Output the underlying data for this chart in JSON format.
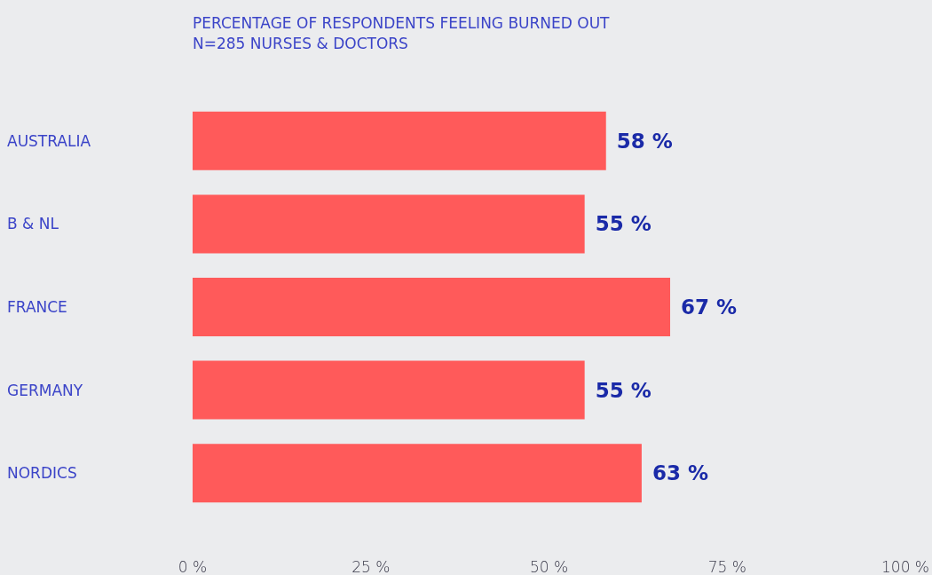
{
  "chart_data": {
    "type": "bar",
    "orientation": "horizontal",
    "title": "PERCENTAGE OF RESPONDENTS FEELING BURNED OUT",
    "subtitle": "N=285 NURSES & DOCTORS",
    "categories": [
      "AUSTRALIA",
      "B & NL",
      "FRANCE",
      "GERMANY",
      "NORDICS"
    ],
    "values": [
      58,
      55,
      67,
      55,
      63
    ],
    "color": "#ff5a5a",
    "value_labels": [
      "58 %",
      "55 %",
      "67 %",
      "55 %",
      "63 %"
    ],
    "xlim": [
      0,
      100
    ],
    "xticks": [
      {
        "value": 0,
        "label": "0 %"
      },
      {
        "value": 25,
        "label": "25 %"
      },
      {
        "value": 50,
        "label": "50 %"
      },
      {
        "value": 75,
        "label": "75 %"
      },
      {
        "value": 100,
        "label": "100 %"
      }
    ],
    "grid": false
  }
}
